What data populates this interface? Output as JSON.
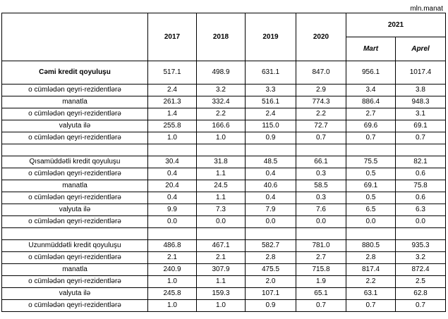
{
  "header": {
    "top_fragment": "",
    "unit": "mln.manat",
    "years": [
      "2017",
      "2018",
      "2019",
      "2020"
    ],
    "group_year": "2021",
    "months": [
      "Mart",
      "Aprel"
    ]
  },
  "rows": [
    {
      "type": "main",
      "label": "Cəmi kredit qoyuluşu",
      "values": [
        "517.1",
        "498.9",
        "631.1",
        "847.0",
        "956.1",
        "1017.4"
      ]
    },
    {
      "type": "data",
      "label": "o cümlədən qeyri-rezidentlərə",
      "values": [
        "2.4",
        "3.2",
        "3.3",
        "2.9",
        "3.4",
        "3.8"
      ]
    },
    {
      "type": "data",
      "label": "manatla",
      "values": [
        "261.3",
        "332.4",
        "516.1",
        "774.3",
        "886.4",
        "948.3"
      ]
    },
    {
      "type": "data",
      "label": "o cümlədən qeyri-rezidentlərə",
      "values": [
        "1.4",
        "2.2",
        "2.4",
        "2.2",
        "2.7",
        "3.1"
      ]
    },
    {
      "type": "data",
      "label": "valyuta ilə",
      "values": [
        "255.8",
        "166.6",
        "115.0",
        "72.7",
        "69.6",
        "69.1"
      ]
    },
    {
      "type": "data",
      "label": "o cümlədən qeyri-rezidentlərə",
      "values": [
        "1.0",
        "1.0",
        "0.9",
        "0.7",
        "0.7",
        "0.7"
      ]
    },
    {
      "type": "spacer"
    },
    {
      "type": "data",
      "label": "Qısamüddətli kredit qoyuluşu",
      "values": [
        "30.4",
        "31.8",
        "48.5",
        "66.1",
        "75.5",
        "82.1"
      ]
    },
    {
      "type": "data",
      "label": "o cümlədən qeyri-rezidentlərə",
      "values": [
        "0.4",
        "1.1",
        "0.4",
        "0.3",
        "0.5",
        "0.6"
      ]
    },
    {
      "type": "data",
      "label": "manatla",
      "values": [
        "20.4",
        "24.5",
        "40.6",
        "58.5",
        "69.1",
        "75.8"
      ]
    },
    {
      "type": "data",
      "label": "o cümlədən qeyri-rezidentlərə",
      "values": [
        "0.4",
        "1.1",
        "0.4",
        "0.3",
        "0.5",
        "0.6"
      ]
    },
    {
      "type": "data",
      "label": "valyuta ilə",
      "values": [
        "9.9",
        "7.3",
        "7.9",
        "7.6",
        "6.5",
        "6.3"
      ]
    },
    {
      "type": "data",
      "label": "o cümlədən qeyri-rezidentlərə",
      "values": [
        "0.0",
        "0.0",
        "0.0",
        "0.0",
        "0.0",
        "0.0"
      ]
    },
    {
      "type": "spacer"
    },
    {
      "type": "data",
      "label": "Uzunmüddətli kredit qoyuluşu",
      "values": [
        "486.8",
        "467.1",
        "582.7",
        "781.0",
        "880.5",
        "935.3"
      ]
    },
    {
      "type": "data",
      "label": "o cümlədən qeyri-rezidentlərə",
      "values": [
        "2.1",
        "2.1",
        "2.8",
        "2.7",
        "2.8",
        "3.2"
      ]
    },
    {
      "type": "data",
      "label": "manatla",
      "values": [
        "240.9",
        "307.9",
        "475.5",
        "715.8",
        "817.4",
        "872.4"
      ]
    },
    {
      "type": "data",
      "label": "o cümlədən qeyri-rezidentlərə",
      "values": [
        "1.0",
        "1.1",
        "2.0",
        "1.9",
        "2.2",
        "2.5"
      ]
    },
    {
      "type": "data",
      "label": "valyuta ilə",
      "values": [
        "245.8",
        "159.3",
        "107.1",
        "65.1",
        "63.1",
        "62.8"
      ]
    },
    {
      "type": "data",
      "label": "o cümlədən qeyri-rezidentlərə",
      "values": [
        "1.0",
        "1.0",
        "0.9",
        "0.7",
        "0.7",
        "0.7"
      ]
    }
  ]
}
